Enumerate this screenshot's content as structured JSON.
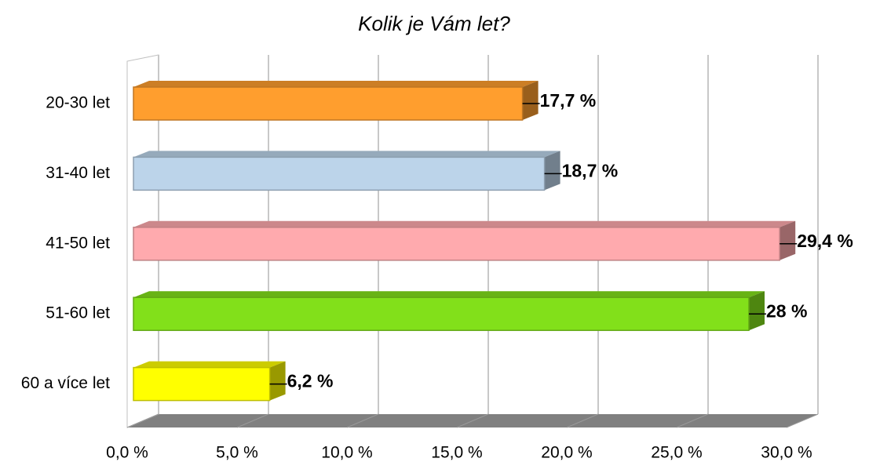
{
  "chart_data": {
    "type": "bar3d_horizontal",
    "title": "Kolik je Vám let?",
    "categories": [
      "20-30 let",
      "31-40 let",
      "41-50 let",
      "51-60 let",
      "60 a více let"
    ],
    "values": [
      17.7,
      18.7,
      29.4,
      28,
      6.2
    ],
    "value_labels": [
      "17,7 %",
      "18,7 %",
      "29,4 %",
      "28 %",
      "6,2 %"
    ],
    "colors": [
      "#ff9e2e",
      "#bcd4ea",
      "#ffaaae",
      "#82e01a",
      "#ffff00"
    ],
    "xlim": [
      0,
      30
    ],
    "xticks": [
      {
        "value": 0,
        "label": "0,0 %"
      },
      {
        "value": 5,
        "label": "5,0 %"
      },
      {
        "value": 10,
        "label": "10,0 %"
      },
      {
        "value": 15,
        "label": "15,0 %"
      },
      {
        "value": 20,
        "label": "20,0 %"
      },
      {
        "value": 25,
        "label": "25,0 %"
      },
      {
        "value": 30,
        "label": "30,0 %"
      }
    ],
    "grid": true
  }
}
